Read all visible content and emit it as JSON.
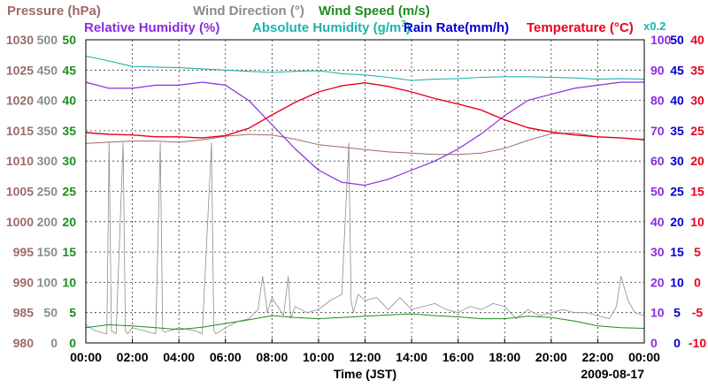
{
  "chart_data": {
    "type": "line",
    "legend": {
      "row1": [
        {
          "text": "Pressure (hPa)",
          "color": "#9d6a6a"
        },
        {
          "text": "Wind Direction (°)",
          "color": "#8c8c8c"
        },
        {
          "text": "Wind Speed (m/s)",
          "color": "#1e8c1e"
        }
      ],
      "row2": [
        {
          "text": "Relative Humidity (%)",
          "color": "#8a2be2"
        },
        {
          "text": "Absolute Humidity (g/m",
          "sup": "3",
          "tail": ")",
          "color": "#20b2aa"
        },
        {
          "text": "Rain Rate(mm/h)",
          "color": "#0000cd"
        },
        {
          "text": "Temperature (",
          "mid": "°",
          "tail": "C)",
          "color": "#e8001c"
        }
      ],
      "multiplier": "x0.2",
      "multiplier_color": "#20b2aa"
    },
    "xlabel": "Time (JST)",
    "date": "2009-08-17",
    "x_ticks": [
      "00:00",
      "02:00",
      "04:00",
      "06:00",
      "08:00",
      "10:00",
      "12:00",
      "14:00",
      "16:00",
      "18:00",
      "20:00",
      "22:00",
      "00:00"
    ],
    "x_range_hours": [
      0,
      24
    ],
    "grid": true,
    "left_axes": [
      {
        "name": "Pressure (hPa)",
        "color": "#9d6a6a",
        "ticks": [
          "1030",
          "1025",
          "1020",
          "1015",
          "1010",
          "1005",
          "1000",
          "995",
          "990",
          "985",
          "980"
        ],
        "range": [
          980,
          1030
        ]
      },
      {
        "name": "Wind Direction (°)",
        "color": "#8c8c8c",
        "ticks": [
          "500",
          "450",
          "400",
          "350",
          "300",
          "250",
          "200",
          "150",
          "100",
          "50",
          "0"
        ],
        "range": [
          0,
          500
        ]
      },
      {
        "name": "Wind Speed (m/s)",
        "color": "#1e8c1e",
        "ticks": [
          "50",
          "45",
          "40",
          "35",
          "30",
          "25",
          "20",
          "15",
          "10",
          "5",
          "0"
        ],
        "range": [
          0,
          50
        ]
      }
    ],
    "right_axes": [
      {
        "name": "Relative Humidity (%)",
        "color": "#8a2be2",
        "ticks": [
          "100",
          "90",
          "80",
          "70",
          "60",
          "50",
          "40",
          "30",
          "20",
          "10",
          "0"
        ],
        "range": [
          0,
          100
        ]
      },
      {
        "name": "Rain Rate (mm/h)",
        "color": "#0000cd",
        "ticks": [
          "50",
          "45",
          "40",
          "35",
          "30",
          "25",
          "20",
          "15",
          "10",
          "5",
          "0"
        ],
        "range": [
          0,
          50
        ]
      },
      {
        "name": "Temperature (°C)",
        "color": "#e8001c",
        "ticks": [
          "40",
          "35",
          "30",
          "25",
          "20",
          "15",
          "10",
          "5",
          "0",
          "-5",
          "-10"
        ],
        "range": [
          -10,
          40
        ]
      }
    ],
    "series": [
      {
        "name": "Pressure (hPa)",
        "color": "#9d6a6a",
        "axis": "pressure",
        "x": [
          0,
          1,
          2,
          3,
          4,
          5,
          6,
          7,
          8,
          9,
          10,
          11,
          12,
          13,
          14,
          15,
          16,
          17,
          18,
          19,
          20,
          21,
          22,
          23,
          24
        ],
        "values": [
          1012.9,
          1013.1,
          1013.3,
          1013.3,
          1013.1,
          1013.5,
          1014.1,
          1014.4,
          1014.3,
          1013.6,
          1012.7,
          1012.3,
          1011.9,
          1011.5,
          1011.3,
          1011.1,
          1011.1,
          1011.3,
          1012.1,
          1013.4,
          1014.5,
          1014.6,
          1014.0,
          1013.8,
          1013.6
        ]
      },
      {
        "name": "Temperature (°C)",
        "color": "#e8001c",
        "axis": "temp",
        "x": [
          0,
          1,
          2,
          3,
          4,
          5,
          6,
          7,
          8,
          9,
          10,
          11,
          12,
          13,
          14,
          15,
          16,
          17,
          18,
          19,
          20,
          21,
          22,
          23,
          24
        ],
        "values": [
          24.7,
          24.4,
          24.3,
          24.0,
          24.0,
          23.8,
          24.2,
          25.4,
          27.6,
          29.7,
          31.4,
          32.4,
          32.9,
          32.3,
          31.4,
          30.3,
          29.4,
          28.4,
          26.8,
          25.5,
          24.8,
          24.3,
          24.0,
          23.8,
          23.5
        ]
      },
      {
        "name": "Relative Humidity (%)",
        "color": "#8a2be2",
        "axis": "rh",
        "x": [
          0,
          1,
          2,
          3,
          4,
          5,
          6,
          7,
          8,
          9,
          10,
          11,
          12,
          13,
          14,
          15,
          16,
          17,
          18,
          19,
          20,
          21,
          22,
          23,
          24
        ],
        "values": [
          86,
          84,
          84,
          85,
          85,
          86,
          85,
          80,
          72,
          64,
          57,
          53,
          52,
          54,
          57,
          60,
          64,
          69,
          75,
          80,
          82,
          84,
          85,
          86,
          86
        ]
      },
      {
        "name": "Absolute Humidity x0.2 (g/m3)",
        "color": "#20b2aa",
        "axis": "ah",
        "x": [
          0,
          1,
          2,
          3,
          4,
          5,
          6,
          7,
          8,
          9,
          10,
          11,
          12,
          13,
          14,
          15,
          16,
          17,
          18,
          19,
          20,
          21,
          22,
          23,
          24
        ],
        "values": [
          47.3,
          46.5,
          45.6,
          45.5,
          45.4,
          45.2,
          45.0,
          44.8,
          44.6,
          44.8,
          44.9,
          44.4,
          44.2,
          43.8,
          43.3,
          43.5,
          43.6,
          43.8,
          43.9,
          43.9,
          43.8,
          43.7,
          43.5,
          43.6,
          43.5
        ]
      },
      {
        "name": "Wind Direction (°)",
        "color": "#8c8c8c",
        "axis": "wdir",
        "x": [
          0,
          0.4,
          0.9,
          1.0,
          1.1,
          1.3,
          1.6,
          1.7,
          1.8,
          2.0,
          2.5,
          3.0,
          3.2,
          3.3,
          3.4,
          3.6,
          4.0,
          4.7,
          5.0,
          5.4,
          5.5,
          5.6,
          6.0,
          6.5,
          7.0,
          7.4,
          7.6,
          7.8,
          8.0,
          8.5,
          8.7,
          8.8,
          9.0,
          9.5,
          10.0,
          10.5,
          11.0,
          11.3,
          11.4,
          11.5,
          11.7,
          12.0,
          12.5,
          13.0,
          13.5,
          14.0,
          14.5,
          15.0,
          15.5,
          16.0,
          16.5,
          17.0,
          17.5,
          18.0,
          18.5,
          19.0,
          19.5,
          20.0,
          20.5,
          21.0,
          21.5,
          22.0,
          22.5,
          22.8,
          23.0,
          23.3,
          23.6,
          24.0
        ],
        "values": [
          30,
          20,
          15,
          330,
          20,
          15,
          330,
          20,
          15,
          25,
          20,
          15,
          330,
          20,
          18,
          20,
          25,
          20,
          15,
          330,
          20,
          15,
          25,
          35,
          40,
          55,
          110,
          50,
          75,
          45,
          110,
          40,
          60,
          50,
          55,
          70,
          80,
          330,
          70,
          50,
          80,
          70,
          75,
          55,
          75,
          55,
          60,
          65,
          55,
          50,
          60,
          55,
          65,
          60,
          40,
          55,
          45,
          50,
          55,
          50,
          50,
          45,
          40,
          60,
          110,
          70,
          50,
          45
        ]
      },
      {
        "name": "Wind Speed (m/s)",
        "color": "#1e8c1e",
        "axis": "wspd",
        "x": [
          0,
          1,
          2,
          3,
          4,
          5,
          6,
          7,
          8,
          9,
          10,
          11,
          12,
          13,
          14,
          15,
          16,
          17,
          18,
          19,
          20,
          21,
          22,
          23,
          24
        ],
        "values": [
          2.5,
          3.0,
          2.8,
          2.5,
          2.2,
          2.6,
          3.2,
          3.8,
          4.5,
          4.2,
          4.0,
          4.2,
          4.4,
          4.6,
          4.8,
          4.5,
          4.3,
          4.0,
          4.0,
          4.4,
          4.2,
          3.6,
          2.8,
          2.5,
          2.4
        ]
      }
    ]
  }
}
